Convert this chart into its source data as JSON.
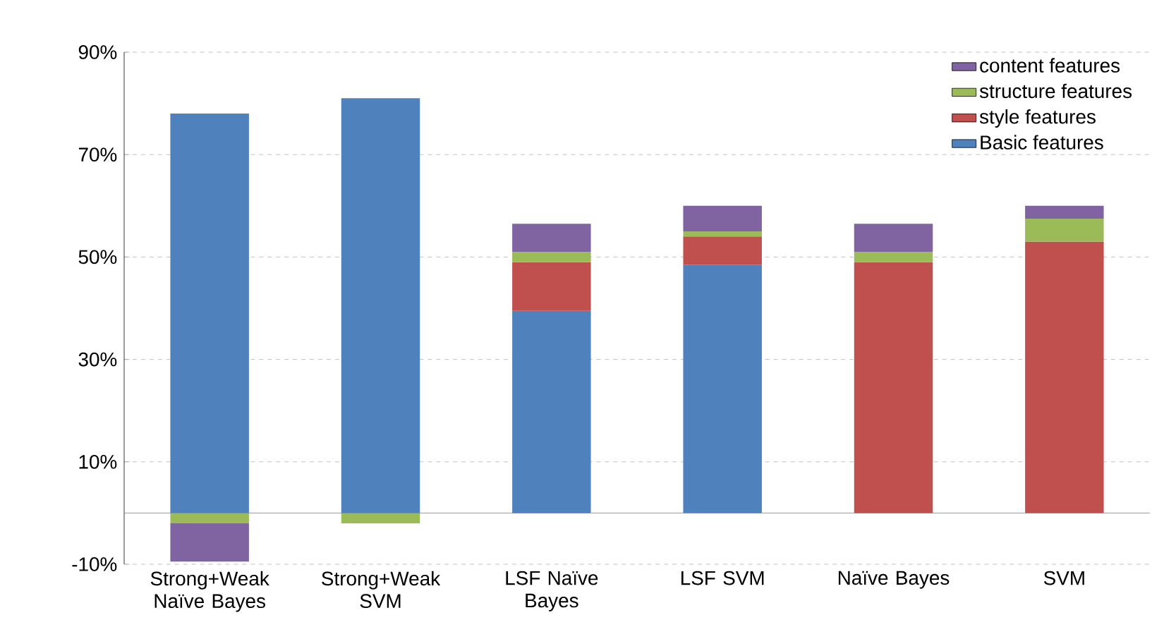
{
  "chart_data": {
    "type": "bar",
    "stacked": true,
    "categories": [
      "Strong+Weak Naïve Bayes",
      "Strong+Weak SVM",
      "LSF Naïve Bayes",
      "LSF SVM",
      "Naïve Bayes",
      "SVM"
    ],
    "series": [
      {
        "name": "Basic features",
        "color": "#4f81bd",
        "values": [
          78,
          81,
          39.5,
          48.5,
          0,
          0
        ]
      },
      {
        "name": "style features",
        "color": "#c0504d",
        "values": [
          0,
          0,
          9.5,
          5.5,
          49,
          53
        ]
      },
      {
        "name": "structure features",
        "color": "#9bbb59",
        "values": [
          -2,
          -2,
          2,
          1,
          2,
          4.5
        ]
      },
      {
        "name": "content features",
        "color": "#8064a2",
        "values": [
          -7.5,
          0,
          5.5,
          5,
          5.5,
          2.5
        ]
      }
    ],
    "ylim": [
      -10,
      90
    ],
    "yticks": [
      {
        "value": -10,
        "label": "-10%"
      },
      {
        "value": 10,
        "label": "10%"
      },
      {
        "value": 30,
        "label": "30%"
      },
      {
        "value": 50,
        "label": "50%"
      },
      {
        "value": 70,
        "label": "70%"
      },
      {
        "value": 90,
        "label": "90%"
      }
    ],
    "grid": "y",
    "legend": "top right"
  }
}
